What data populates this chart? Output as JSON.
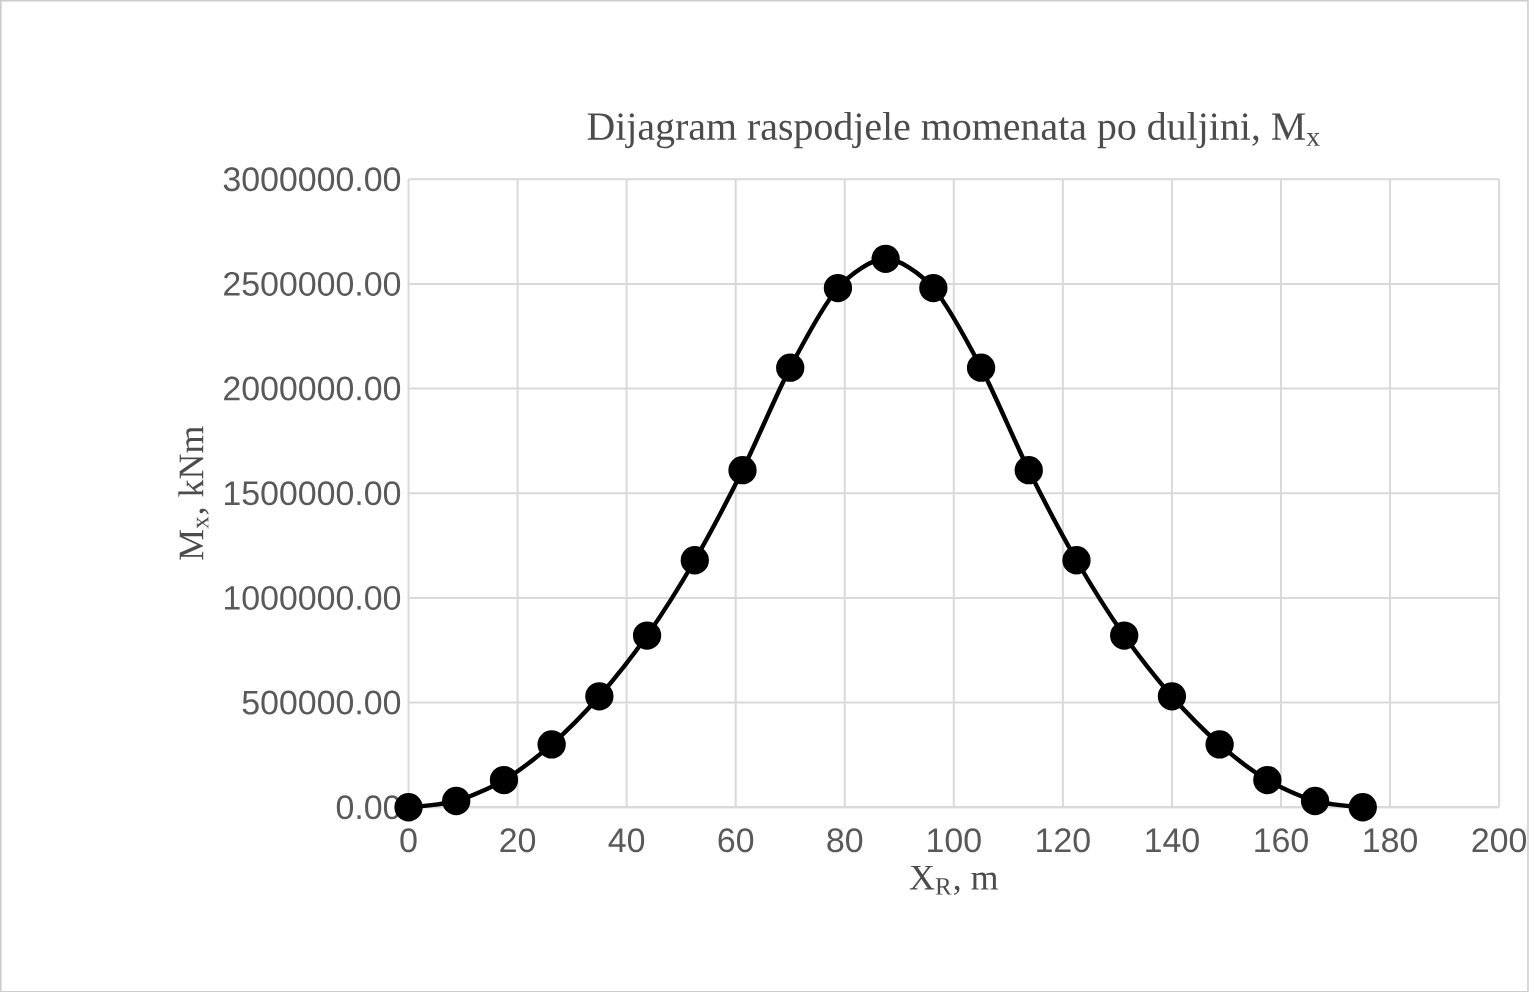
{
  "chart_data": {
    "type": "line",
    "title": "Dijagram raspodjele momenata po duljini, M$_{x}$",
    "xlabel": "X$_{R}$, m",
    "ylabel": "M$_{x}$, kNm",
    "x": [
      0,
      8.75,
      17.5,
      26.25,
      35,
      43.75,
      52.5,
      61.25,
      70,
      78.75,
      87.5,
      96.25,
      105,
      113.75,
      122.5,
      131.25,
      140,
      148.75,
      157.5,
      166.25,
      175
    ],
    "series": [
      {
        "color": "#000000",
        "values": [
          0,
          30000,
          130000,
          300000,
          530000,
          820000,
          1180000,
          1610000,
          2100000,
          2480000,
          2620000,
          2480000,
          2100000,
          1610000,
          1180000,
          820000,
          530000,
          300000,
          130000,
          30000,
          0
        ]
      }
    ],
    "xlim": [
      0,
      200
    ],
    "xticks": [
      0,
      20,
      40,
      60,
      80,
      100,
      120,
      140,
      160,
      180,
      200
    ],
    "ylim": [
      0,
      3000000
    ],
    "yticks": [
      {
        "value": 0,
        "label": "0.00"
      },
      {
        "value": 500000,
        "label": "500000.00"
      },
      {
        "value": 1000000,
        "label": "1000000.00"
      },
      {
        "value": 1500000,
        "label": "1500000.00"
      },
      {
        "value": 2000000,
        "label": "2000000.00"
      },
      {
        "value": 2500000,
        "label": "2500000.00"
      },
      {
        "value": 3000000,
        "label": "3000000.00"
      }
    ],
    "grid": true,
    "marker": "circle",
    "line_style": "solid"
  }
}
